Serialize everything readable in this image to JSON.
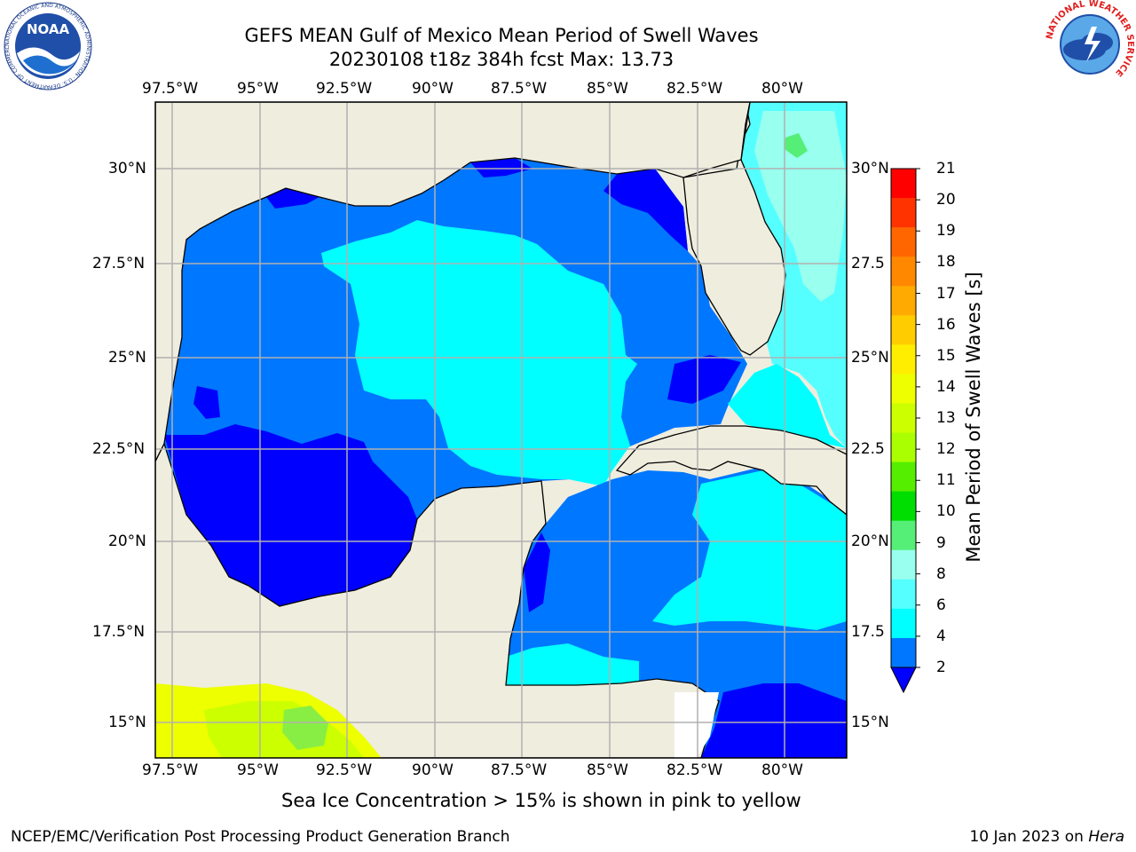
{
  "title": {
    "line1": "GEFS MEAN Gulf of Mexico Mean Period of Swell Waves",
    "line2": "20230108 t18z 384h fcst   Max: 13.73"
  },
  "logos": {
    "left_name": "NOAA",
    "left_ring_text": "NATIONAL OCEANIC AND ATMOSPHERIC ADMINISTRATION · U.S. DEPARTMENT OF COMMERCE",
    "right_ring_text": "NATIONAL WEATHER SERVICE"
  },
  "map": {
    "lon_ticks_top": [
      "97.5°W",
      "95°W",
      "92.5°W",
      "90°W",
      "87.5°W",
      "85°W",
      "82.5°W",
      "80°W"
    ],
    "lon_ticks_bottom": [
      "97.5°W",
      "95°W",
      "92.5°W",
      "90°W",
      "87.5°W",
      "85°W",
      "82.5°W",
      "80°W"
    ],
    "lat_ticks_left": [
      "30°N",
      "27.5°N",
      "25°N",
      "22.5°N",
      "20°N",
      "17.5°N",
      "15°N"
    ],
    "lat_ticks_right": [
      "30°N",
      "27.5",
      "25°N",
      "22.5",
      "20°N",
      "17.5",
      "15°N"
    ],
    "land_color": "#efedde",
    "grid_color": "#b0b0b0"
  },
  "colorbar": {
    "title": "Mean Period of Swell Waves [s]",
    "labels": [
      "21",
      "20",
      "19",
      "18",
      "17",
      "16",
      "15",
      "14",
      "13",
      "12",
      "11",
      "10",
      "9",
      "8",
      "6",
      "4",
      "2"
    ],
    "colors": [
      "#ff0000",
      "#ff3300",
      "#ff6600",
      "#ff8800",
      "#ffaa00",
      "#ffcc00",
      "#ffee00",
      "#eeff00",
      "#ccff00",
      "#aaff00",
      "#55ee00",
      "#00dd00",
      "#55ee77",
      "#99ffee",
      "#55ffff",
      "#00ffff",
      "#0077ff"
    ],
    "under_color": "#0000ff"
  },
  "swell_colors": {
    "band_2_4": "#0077ff",
    "band_under_2": "#0000ff",
    "band_4_6": "#00ffff",
    "band_6_8": "#55ffff",
    "band_8_9": "#99ffee",
    "band_9_10": "#55ee77",
    "ice_yellow": "#eeff00",
    "ice_lime": "#ccff00",
    "ice_green": "#88ee44"
  },
  "bottom_note": "Sea Ice Concentration > 15% is shown in pink to yellow",
  "footer": {
    "left": "NCEP/EMC/Verification Post Processing Product Generation Branch",
    "right_date": "10 Jan 2023 on",
    "right_host": "Hera"
  }
}
